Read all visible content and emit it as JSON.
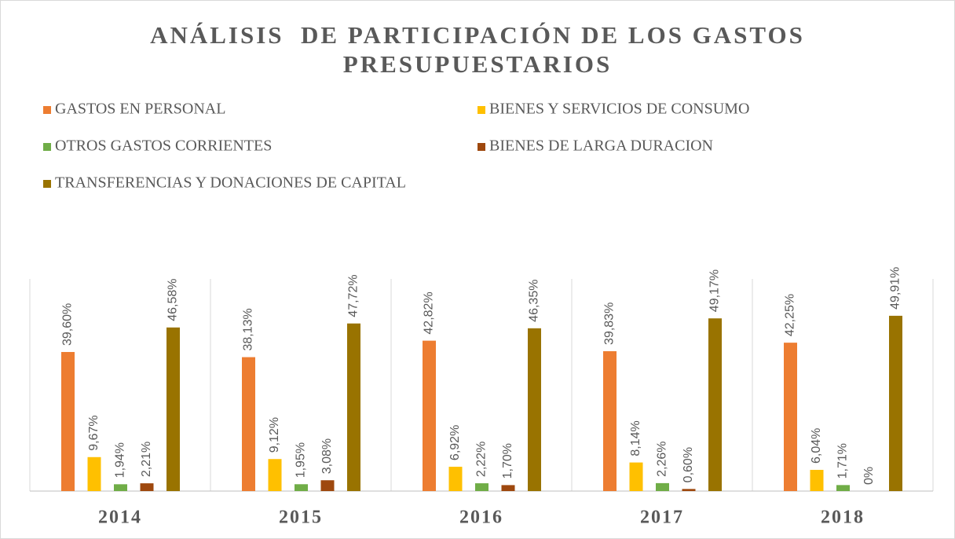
{
  "chart_data": {
    "type": "bar",
    "title": "ANÁLISIS  DE PARTICIPACIÓN DE LOS GASTOS PRESUPUESTARIOS",
    "categories": [
      "2014",
      "2015",
      "2016",
      "2017",
      "2018"
    ],
    "series": [
      {
        "name": "GASTOS EN PERSONAL",
        "color": "#ED7D31",
        "values": [
          39.6,
          38.13,
          42.82,
          39.83,
          42.25
        ],
        "value_labels": [
          "39,60%",
          "38,13%",
          "42,82%",
          "39,83%",
          "42,25%"
        ]
      },
      {
        "name": "BIENES Y SERVICIOS DE CONSUMO",
        "color": "#FFC000",
        "values": [
          9.67,
          9.12,
          6.92,
          8.14,
          6.04
        ],
        "value_labels": [
          "9,67%",
          "9,12%",
          "6,92%",
          "8,14%",
          "6,04%"
        ]
      },
      {
        "name": "OTROS GASTOS CORRIENTES",
        "color": "#70AD47",
        "values": [
          1.94,
          1.95,
          2.22,
          2.26,
          1.71
        ],
        "value_labels": [
          "1,94%",
          "1,95%",
          "2,22%",
          "2,26%",
          "1,71%"
        ]
      },
      {
        "name": "BIENES DE LARGA DURACION",
        "color": "#9E480E",
        "values": [
          2.21,
          3.08,
          1.7,
          0.6,
          0
        ],
        "value_labels": [
          "2,21%",
          "3,08%",
          "1,70%",
          "0,60%",
          "0%"
        ]
      },
      {
        "name": "TRANSFERENCIAS Y DONACIONES DE CAPITAL",
        "color": "#997300",
        "values": [
          46.58,
          47.72,
          46.35,
          49.17,
          49.91
        ],
        "value_labels": [
          "46,58%",
          "47,72%",
          "46,35%",
          "49,17%",
          "49,91%"
        ]
      }
    ]
  }
}
